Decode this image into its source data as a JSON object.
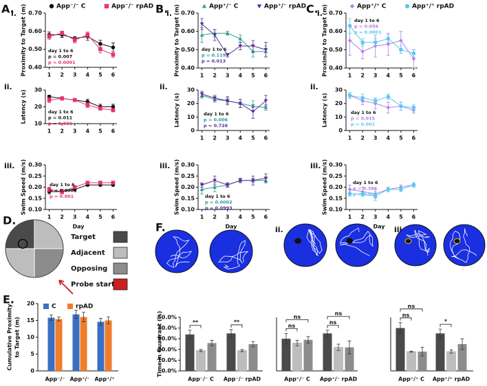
{
  "chart_data": [
    {
      "type": "line",
      "panel": "A.",
      "label": "i.",
      "y_label": "Proximity to Target (m)",
      "x": [
        1,
        2,
        3,
        4,
        5,
        6
      ],
      "xlim": [
        0.7,
        6.3
      ],
      "xticks": [
        1,
        2,
        3,
        4,
        5,
        6
      ],
      "ylim": [
        0.4,
        0.7
      ],
      "yticks": [
        {
          "value": 0.4,
          "label": "0.40"
        },
        {
          "value": 0.5,
          "label": "0.50"
        },
        {
          "value": 0.6,
          "label": "0.60"
        },
        {
          "value": 0.7,
          "label": "0.70"
        }
      ],
      "series": [
        {
          "name": "App⁻/⁻ C",
          "color": "#111111",
          "marker": "circle",
          "values": [
            0.58,
            0.58,
            0.56,
            0.57,
            0.53,
            0.51
          ],
          "errors": [
            0.015,
            0.015,
            0.01,
            0.02,
            0.02,
            0.025
          ]
        },
        {
          "name": "App⁻/⁻ rpAD",
          "color": "#e8336b",
          "marker": "square",
          "values": [
            0.57,
            0.59,
            0.55,
            0.58,
            0.5,
            0.47
          ],
          "errors": [
            0.015,
            0.01,
            0.015,
            0.015,
            0.02,
            0.015
          ]
        }
      ],
      "annotation": {
        "header": "day 1 to 6",
        "lines": [
          "p = 0.007",
          "p < 0.0001"
        ]
      }
    },
    {
      "type": "line",
      "label": "ii.",
      "y_label": "Latency (s)",
      "x": [
        1,
        2,
        3,
        4,
        5,
        6
      ],
      "xlim": [
        0.7,
        6.3
      ],
      "xticks": [
        1,
        2,
        3,
        4,
        5,
        6
      ],
      "ylim": [
        10,
        30
      ],
      "yticks": [
        10,
        20,
        30
      ],
      "series": [
        {
          "color": "#111111",
          "marker": "circle",
          "values": [
            26,
            25,
            24,
            23,
            20,
            20
          ],
          "errors": [
            1,
            1,
            1,
            1.5,
            1.5,
            1.5
          ]
        },
        {
          "color": "#e8336b",
          "marker": "square",
          "values": [
            24,
            25,
            24,
            21,
            19,
            18
          ],
          "errors": [
            1.5,
            1,
            1,
            1.5,
            1,
            1
          ]
        }
      ],
      "annotation": {
        "header": "day 1 to 6",
        "lines": [
          "p = 0.011",
          "p = 0.031"
        ]
      }
    },
    {
      "type": "line",
      "label": "iii.",
      "y_label": "Swim Speed (m/s)",
      "x_label": "Day",
      "x": [
        1,
        2,
        3,
        4,
        5,
        6
      ],
      "xlim": [
        0.7,
        6.3
      ],
      "xticks": [
        1,
        2,
        3,
        4,
        5,
        6
      ],
      "ylim": [
        0.1,
        0.3
      ],
      "yticks": [
        {
          "value": 0.1,
          "label": "0.10"
        },
        {
          "value": 0.15,
          "label": "0.15"
        },
        {
          "value": 0.2,
          "label": "0.20"
        },
        {
          "value": 0.25,
          "label": "0.25"
        },
        {
          "value": 0.3,
          "label": "0.30"
        }
      ],
      "series": [
        {
          "color": "#111111",
          "marker": "circle",
          "values": [
            0.18,
            0.18,
            0.19,
            0.21,
            0.21,
            0.21
          ],
          "errors": [
            0.01,
            0.01,
            0.005,
            0.005,
            0.005,
            0.005
          ]
        },
        {
          "color": "#e8336b",
          "marker": "square",
          "values": [
            0.19,
            0.18,
            0.2,
            0.22,
            0.22,
            0.22
          ],
          "errors": [
            0.01,
            0.01,
            0.005,
            0.005,
            0.005,
            0.005
          ]
        }
      ],
      "annotation": {
        "header": "day 1 to 6",
        "lines": [
          "p < 0.0001",
          "p = 0.001"
        ]
      }
    },
    {
      "type": "line",
      "panel": "B.",
      "label": "i.",
      "y_label": "Proximity to Target (m)",
      "x": [
        1,
        2,
        3,
        4,
        5,
        6
      ],
      "xlim": [
        0.7,
        6.3
      ],
      "xticks": [
        1,
        2,
        3,
        4,
        5,
        6
      ],
      "ylim": [
        0.4,
        0.7
      ],
      "yticks": [
        {
          "value": 0.4,
          "label": "0.40"
        },
        {
          "value": 0.5,
          "label": "0.50"
        },
        {
          "value": 0.6,
          "label": "0.60"
        },
        {
          "value": 0.7,
          "label": "0.70"
        }
      ],
      "series": [
        {
          "name": "App⁺/⁻ C",
          "color": "#2a9d8f",
          "marker": "triangle",
          "values": [
            0.58,
            0.59,
            0.59,
            0.56,
            0.49,
            0.49
          ],
          "errors": [
            0.04,
            0.02,
            0.01,
            0.02,
            0.03,
            0.03
          ]
        },
        {
          "name": "App⁺/⁻ rpAD",
          "color": "#5b2a9a",
          "marker": "triangle-down",
          "values": [
            0.64,
            0.58,
            0.47,
            0.52,
            0.52,
            0.5
          ],
          "errors": [
            0.03,
            0.03,
            0.01,
            0.02,
            0.03,
            0.04
          ]
        }
      ],
      "annotation": {
        "header": "day 1 to 6",
        "lines": [
          "p = 0.119",
          "p = 0.013"
        ]
      }
    },
    {
      "type": "line",
      "label": "ii.",
      "y_label": "Latency (s)",
      "x": [
        1,
        2,
        3,
        4,
        5,
        6
      ],
      "xlim": [
        0.7,
        6.3
      ],
      "xticks": [
        1,
        2,
        3,
        4,
        5,
        6
      ],
      "ylim": [
        0,
        30
      ],
      "yticks": [
        0,
        10,
        20,
        30
      ],
      "series": [
        {
          "color": "#2a9d8f",
          "marker": "triangle",
          "values": [
            26,
            23,
            22,
            20,
            18,
            17
          ],
          "errors": [
            2,
            2,
            2,
            3,
            4,
            2
          ]
        },
        {
          "color": "#5b2a9a",
          "marker": "triangle-down",
          "values": [
            27,
            24,
            22,
            20,
            14,
            22
          ],
          "errors": [
            2,
            2,
            3,
            3,
            5,
            4
          ]
        }
      ],
      "annotation": {
        "header": "day 1 to 6",
        "lines": [
          "p = 0.006",
          "p = 0.726"
        ]
      }
    },
    {
      "type": "line",
      "label": "iii.",
      "y_label": "Swim Speed (m/s)",
      "x_label": "Day",
      "x": [
        1,
        2,
        3,
        4,
        5,
        6
      ],
      "xlim": [
        0.7,
        6.3
      ],
      "xticks": [
        1,
        2,
        3,
        4,
        5,
        6
      ],
      "ylim": [
        0.1,
        0.3
      ],
      "yticks": [
        {
          "value": 0.1,
          "label": "0.10"
        },
        {
          "value": 0.15,
          "label": "0.15"
        },
        {
          "value": 0.2,
          "label": "0.20"
        },
        {
          "value": 0.25,
          "label": "0.25"
        },
        {
          "value": 0.3,
          "label": "0.30"
        }
      ],
      "series": [
        {
          "color": "#2a9d8f",
          "marker": "triangle",
          "values": [
            0.19,
            0.2,
            0.21,
            0.23,
            0.23,
            0.23
          ],
          "errors": [
            0.02,
            0.02,
            0.01,
            0.01,
            0.01,
            0.01
          ]
        },
        {
          "color": "#5b2a9a",
          "marker": "triangle-down",
          "values": [
            0.21,
            0.23,
            0.21,
            0.23,
            0.23,
            0.24
          ],
          "errors": [
            0.01,
            0.02,
            0.01,
            0.01,
            0.02,
            0.02
          ]
        }
      ],
      "annotation": {
        "header": "day 1 to 6",
        "lines": [
          "p = 0.0002",
          "p = 0.0993"
        ]
      }
    },
    {
      "type": "line",
      "panel": "C.",
      "label": "i.",
      "y_label": "Proximity to Target (m)",
      "x": [
        1,
        2,
        3,
        4,
        5,
        6
      ],
      "xlim": [
        0.7,
        6.3
      ],
      "xticks": [
        1,
        2,
        3,
        4,
        5,
        6
      ],
      "ylim": [
        0.4,
        0.7
      ],
      "yticks": [
        {
          "value": 0.4,
          "label": "0.40"
        },
        {
          "value": 0.5,
          "label": "0.50"
        },
        {
          "value": 0.6,
          "label": "0.60"
        },
        {
          "value": 0.7,
          "label": "0.70"
        }
      ],
      "series": [
        {
          "name": "App⁺/⁺ C",
          "color": "#b57ee8",
          "marker": "diamond",
          "values": [
            0.55,
            0.49,
            0.52,
            0.53,
            0.55,
            0.45
          ],
          "errors": [
            0.08,
            0.04,
            0.06,
            0.06,
            0.05,
            0.05
          ]
        },
        {
          "name": "App⁺/⁺ rpAD",
          "color": "#5bc8f0",
          "marker": "circle",
          "values": [
            0.63,
            0.54,
            0.54,
            0.56,
            0.5,
            0.48
          ],
          "errors": [
            0.04,
            0.02,
            0.02,
            0.02,
            0.02,
            0.02
          ]
        }
      ],
      "annotation": {
        "header": "day 1 to 6",
        "lines": [
          "p = 0.056",
          "p = 0.0001"
        ]
      }
    },
    {
      "type": "line",
      "label": "ii.",
      "y_label": "Latency (s)",
      "x": [
        1,
        2,
        3,
        4,
        5,
        6
      ],
      "xlim": [
        0.7,
        6.3
      ],
      "xticks": [
        1,
        2,
        3,
        4,
        5,
        6
      ],
      "ylim": [
        0,
        30
      ],
      "yticks": [
        0,
        10,
        20,
        30
      ],
      "series": [
        {
          "color": "#b57ee8",
          "marker": "diamond",
          "values": [
            26,
            22,
            20,
            17,
            18,
            15
          ],
          "errors": [
            2,
            3,
            4,
            4,
            3,
            2
          ]
        },
        {
          "color": "#5bc8f0",
          "marker": "circle",
          "values": [
            26,
            24,
            22,
            25,
            18,
            17
          ],
          "errors": [
            2,
            3,
            2,
            2,
            3,
            2
          ]
        }
      ],
      "annotation": {
        "header": "day 1 to 6",
        "lines": [
          "p = 0.015",
          "p = 0.001"
        ]
      }
    },
    {
      "type": "line",
      "label": "iii.",
      "y_label": "Swim Speed (m/s)",
      "x_label": "Day",
      "x": [
        1,
        2,
        3,
        4,
        5,
        6
      ],
      "xlim": [
        0.7,
        6.3
      ],
      "xticks": [
        1,
        2,
        3,
        4,
        5,
        6
      ],
      "ylim": [
        0.1,
        0.3
      ],
      "yticks": [
        {
          "value": 0.1,
          "label": "0.10"
        },
        {
          "value": 0.15,
          "label": "0.15"
        },
        {
          "value": 0.2,
          "label": "0.20"
        },
        {
          "value": 0.25,
          "label": "0.25"
        },
        {
          "value": 0.3,
          "label": "0.30"
        }
      ],
      "series": [
        {
          "color": "#b57ee8",
          "marker": "diamond",
          "values": [
            0.19,
            0.18,
            0.17,
            0.19,
            0.2,
            0.21
          ],
          "errors": [
            0.02,
            0.02,
            0.02,
            0.01,
            0.01,
            0.01
          ]
        },
        {
          "color": "#5bc8f0",
          "marker": "circle",
          "values": [
            0.17,
            0.17,
            0.16,
            0.19,
            0.19,
            0.21
          ],
          "errors": [
            0.01,
            0.01,
            0.02,
            0.01,
            0.01,
            0.01
          ]
        }
      ],
      "annotation": {
        "header": "day 1 to 6",
        "lines": [
          "p = 0.386",
          "p = 0.005"
        ]
      }
    },
    {
      "type": "bar",
      "panel": "E.",
      "y_label": [
        "Cumulative Proximity",
        "to Target (m)"
      ],
      "categories": [
        "App⁻/⁻",
        "App⁺/⁻",
        "App⁺/⁺"
      ],
      "ylim": [
        0,
        20
      ],
      "yticks": [
        0,
        5,
        10,
        15,
        20
      ],
      "series": [
        {
          "name": "C",
          "color": "#3a6fc4",
          "values": [
            15.8,
            16.8,
            14.6
          ],
          "errors": [
            0.8,
            1.2,
            1.0
          ]
        },
        {
          "name": "rpAD",
          "color": "#f07d2a",
          "values": [
            15.4,
            16.0,
            15.0
          ],
          "errors": [
            0.6,
            1.4,
            1.0
          ]
        }
      ]
    },
    {
      "type": "bar",
      "panel": "F.",
      "label": "i.",
      "y_label": "Time in Quadrant (%)",
      "categories": [
        "App⁻/⁻ C",
        "App⁻/⁻ rpAD"
      ],
      "ylim": [
        0,
        50
      ],
      "yticks": [
        {
          "value": 0,
          "label": "0.0%"
        },
        {
          "value": 10,
          "label": "10.0%"
        },
        {
          "value": 20,
          "label": "20.0%"
        },
        {
          "value": 30,
          "label": "30.0%"
        },
        {
          "value": 40,
          "label": "40.0%"
        },
        {
          "value": 50,
          "label": "50.0%"
        }
      ],
      "series": [
        {
          "color": "#4a4a4a",
          "values": [
            34,
            35
          ],
          "errors": [
            4,
            3.5
          ]
        },
        {
          "color": "#bdbdbd",
          "values": [
            19,
            19
          ],
          "errors": [
            1,
            1
          ]
        },
        {
          "color": "#8c8c8c",
          "values": [
            26,
            25
          ],
          "errors": [
            2.5,
            2.5
          ]
        }
      ],
      "brackets": [
        "**",
        "**"
      ]
    },
    {
      "type": "bar",
      "label": "ii.",
      "categories": [
        "App⁺/⁻ C",
        "App⁺/⁻ rpAD"
      ],
      "ylim": [
        0,
        50
      ],
      "series": [
        {
          "color": "#4a4a4a",
          "values": [
            30,
            35
          ],
          "errors": [
            5,
            3
          ]
        },
        {
          "color": "#bdbdbd",
          "values": [
            26,
            22
          ],
          "errors": [
            2.5,
            3
          ]
        },
        {
          "color": "#8c8c8c",
          "values": [
            29,
            22
          ],
          "errors": [
            3,
            6
          ]
        }
      ],
      "brackets": [
        "ns",
        "ns",
        "ns",
        "ns"
      ]
    },
    {
      "type": "bar",
      "label": "iii.",
      "categories": [
        "App⁺/⁺ C",
        "App⁺/⁺ rpAD"
      ],
      "ylim": [
        0,
        50
      ],
      "series": [
        {
          "color": "#4a4a4a",
          "values": [
            40,
            35
          ],
          "errors": [
            5,
            4
          ]
        },
        {
          "color": "#bdbdbd",
          "values": [
            18,
            18
          ],
          "errors": [
            0.5,
            1.5
          ]
        },
        {
          "color": "#8c8c8c",
          "values": [
            18,
            25
          ],
          "errors": [
            4,
            5
          ]
        }
      ],
      "brackets": [
        "ns",
        "ns",
        "*"
      ]
    }
  ],
  "quadrant_diagram": {
    "panel": "D.",
    "legend": [
      {
        "label": "Target",
        "color": "#4a4a4a"
      },
      {
        "label": "Adjacent",
        "color": "#bdbdbd"
      },
      {
        "label": "Opposing",
        "color": "#8c8c8c"
      },
      {
        "label": "Probe start",
        "color": "#cc1f1f"
      }
    ]
  }
}
